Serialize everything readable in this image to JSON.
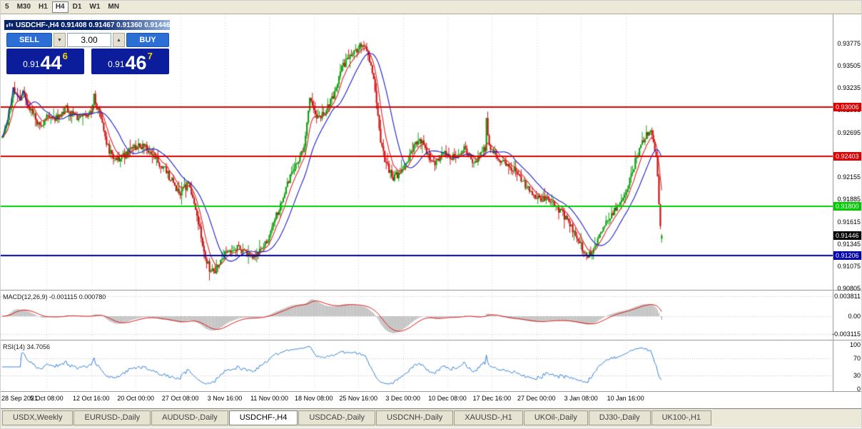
{
  "toolbar": {
    "timeframes": [
      {
        "label": "5",
        "active": false
      },
      {
        "label": "M30",
        "active": false
      },
      {
        "label": "H1",
        "active": false
      },
      {
        "label": "H4",
        "active": true
      },
      {
        "label": "D1",
        "active": false
      },
      {
        "label": "W1",
        "active": false
      },
      {
        "label": "MN",
        "active": false
      }
    ]
  },
  "chart_window": {
    "title": "USDCHF-,H4  0.91408 0.91467 0.91360 0.91446"
  },
  "trade_panel": {
    "sell_label": "SELL",
    "buy_label": "BUY",
    "volume": "3.00",
    "volume_down_glyph": "▼",
    "volume_up_glyph": "▲",
    "sell_price_prefix": "0.91",
    "sell_price_big": "44",
    "sell_price_sup": "6",
    "buy_price_prefix": "0.91",
    "buy_price_big": "46",
    "buy_price_sup": "7"
  },
  "price_axis": {
    "ticks": [
      "0.93775",
      "0.93505",
      "0.93235",
      "0.92965",
      "0.92695",
      "0.92425",
      "0.92155",
      "0.91885",
      "0.91615",
      "0.91345",
      "0.91075",
      "0.90805"
    ],
    "levels": [
      {
        "value": "0.93006",
        "price": 0.93006,
        "bg": "#dd0000"
      },
      {
        "value": "0.92403",
        "price": 0.92403,
        "bg": "#dd0000"
      },
      {
        "value": "0.91800",
        "price": 0.918,
        "bg": "#00cc00"
      },
      {
        "value": "0.91446",
        "price": 0.91446,
        "bg": "#000000"
      },
      {
        "value": "0.91206",
        "price": 0.91206,
        "bg": "#0000aa"
      }
    ]
  },
  "time_axis": {
    "labels": [
      "28 Sep 2021",
      "5 Oct 08:00",
      "12 Oct 16:00",
      "20 Oct 00:00",
      "27 Oct 08:00",
      "3 Nov 16:00",
      "11 Nov 00:00",
      "18 Nov 08:00",
      "25 Nov 16:00",
      "3 Dec 00:00",
      "10 Dec 08:00",
      "17 Dec 16:00",
      "27 Dec 00:00",
      "3 Jan 08:00",
      "10 Jan 16:00"
    ]
  },
  "indicators": {
    "macd": {
      "label": "MACD(12,26,9) -0.001115 0.000780",
      "scale_top": "0.003811",
      "scale_mid": "0.00",
      "scale_bottom": "-0.003115"
    },
    "rsi": {
      "label": "RSI(14) 34.7056",
      "scale": [
        "100",
        "70",
        "30",
        "0"
      ]
    }
  },
  "tabs": [
    {
      "label": "USDX,Weekly",
      "active": false
    },
    {
      "label": "EURUSD-,Daily",
      "active": false
    },
    {
      "label": "AUDUSD-,Daily",
      "active": false
    },
    {
      "label": "USDCHF-,H4",
      "active": true
    },
    {
      "label": "USDCAD-,Daily",
      "active": false
    },
    {
      "label": "USDCNH-,Daily",
      "active": false
    },
    {
      "label": "XAUUSD-,H1",
      "active": false
    },
    {
      "label": "UKOil-,Daily",
      "active": false
    },
    {
      "label": "DJ30-,Daily",
      "active": false
    },
    {
      "label": "UK100-,H1",
      "active": false
    }
  ],
  "colors": {
    "button_blue": "#2b6fd6",
    "price_panel_navy": "#0b1d9b",
    "pip_digit_yellow": "#ffd700",
    "up_candle": "#0da00d",
    "down_candle": "#cc1414",
    "ma_fast_red": "#e02020",
    "ma_slow_blue": "#1a1acc",
    "macd_histogram": "#b2b2b2",
    "macd_signal": "#dd1111",
    "rsi_line": "#2f7ed8"
  },
  "chart_data": {
    "type": "candlestick",
    "symbol": "USDCHF-",
    "timeframe": "H4",
    "current_bar": {
      "open": 0.91408,
      "high": 0.91467,
      "low": 0.9136,
      "close": 0.91446
    },
    "visible_price_range": [
      0.9079,
      0.94125
    ],
    "bar_count": 475,
    "horizontal_lines": [
      {
        "price": 0.93006,
        "color": "#dd0000",
        "width": 1.8
      },
      {
        "price": 0.92403,
        "color": "#dd0000",
        "width": 1.8
      },
      {
        "price": 0.918,
        "color": "#00cc00",
        "width": 2.2
      },
      {
        "price": 0.91206,
        "color": "#0000aa",
        "width": 2.2
      }
    ],
    "moving_averages": [
      {
        "type": "ema",
        "period": 8,
        "color": "#e02020"
      },
      {
        "type": "sma",
        "period": 20,
        "color": "#1a1acc"
      }
    ],
    "macd": {
      "fast": 12,
      "slow": 26,
      "signal": 9,
      "main_value": -0.001115,
      "signal_value": 0.00078
    },
    "rsi": {
      "period": 14,
      "value": 34.7056
    },
    "price_path_anchors": [
      [
        0,
        0.9263
      ],
      [
        4,
        0.9285
      ],
      [
        8,
        0.9322
      ],
      [
        12,
        0.931
      ],
      [
        15,
        0.9318
      ],
      [
        18,
        0.9305
      ],
      [
        22,
        0.9293
      ],
      [
        26,
        0.9278
      ],
      [
        30,
        0.9283
      ],
      [
        34,
        0.929
      ],
      [
        38,
        0.9286
      ],
      [
        42,
        0.9292
      ],
      [
        46,
        0.9298
      ],
      [
        50,
        0.9291
      ],
      [
        55,
        0.9288
      ],
      [
        60,
        0.9288
      ],
      [
        64,
        0.9296
      ],
      [
        66,
        0.9314
      ],
      [
        68,
        0.9301
      ],
      [
        71,
        0.9288
      ],
      [
        74,
        0.9264
      ],
      [
        77,
        0.9245
      ],
      [
        81,
        0.9241
      ],
      [
        85,
        0.9238
      ],
      [
        89,
        0.9244
      ],
      [
        93,
        0.9248
      ],
      [
        97,
        0.9252
      ],
      [
        101,
        0.9254
      ],
      [
        105,
        0.9248
      ],
      [
        109,
        0.9241
      ],
      [
        113,
        0.9232
      ],
      [
        117,
        0.9224
      ],
      [
        121,
        0.9213
      ],
      [
        125,
        0.9202
      ],
      [
        128,
        0.9196
      ],
      [
        131,
        0.9202
      ],
      [
        134,
        0.9207
      ],
      [
        137,
        0.9194
      ],
      [
        140,
        0.9172
      ],
      [
        143,
        0.9143
      ],
      [
        146,
        0.912
      ],
      [
        149,
        0.9104
      ],
      [
        152,
        0.9099
      ],
      [
        155,
        0.911
      ],
      [
        158,
        0.9118
      ],
      [
        162,
        0.9124
      ],
      [
        166,
        0.9127
      ],
      [
        170,
        0.913
      ],
      [
        174,
        0.9124
      ],
      [
        178,
        0.9119
      ],
      [
        182,
        0.9122
      ],
      [
        186,
        0.9128
      ],
      [
        190,
        0.9136
      ],
      [
        194,
        0.9152
      ],
      [
        198,
        0.9174
      ],
      [
        202,
        0.9194
      ],
      [
        206,
        0.9212
      ],
      [
        210,
        0.9226
      ],
      [
        214,
        0.9238
      ],
      [
        218,
        0.9262
      ],
      [
        221,
        0.9308
      ],
      [
        223,
        0.9302
      ],
      [
        226,
        0.929
      ],
      [
        229,
        0.9289
      ],
      [
        232,
        0.9295
      ],
      [
        235,
        0.9302
      ],
      [
        238,
        0.9315
      ],
      [
        241,
        0.933
      ],
      [
        244,
        0.9348
      ],
      [
        248,
        0.9357
      ],
      [
        252,
        0.9364
      ],
      [
        256,
        0.9371
      ],
      [
        259,
        0.9377
      ],
      [
        262,
        0.9371
      ],
      [
        265,
        0.9347
      ],
      [
        268,
        0.9322
      ],
      [
        270,
        0.9288
      ],
      [
        272,
        0.9254
      ],
      [
        275,
        0.9238
      ],
      [
        278,
        0.9224
      ],
      [
        281,
        0.9215
      ],
      [
        284,
        0.9218
      ],
      [
        287,
        0.9222
      ],
      [
        290,
        0.9228
      ],
      [
        293,
        0.9241
      ],
      [
        296,
        0.9254
      ],
      [
        299,
        0.9259
      ],
      [
        302,
        0.9256
      ],
      [
        305,
        0.9245
      ],
      [
        308,
        0.9233
      ],
      [
        311,
        0.9232
      ],
      [
        314,
        0.9239
      ],
      [
        317,
        0.9246
      ],
      [
        320,
        0.9242
      ],
      [
        323,
        0.9238
      ],
      [
        326,
        0.9241
      ],
      [
        329,
        0.9245
      ],
      [
        332,
        0.925
      ],
      [
        335,
        0.9244
      ],
      [
        338,
        0.9235
      ],
      [
        341,
        0.9238
      ],
      [
        344,
        0.9246
      ],
      [
        347,
        0.9251
      ],
      [
        348,
        0.9283
      ],
      [
        350,
        0.9255
      ],
      [
        352,
        0.9247
      ],
      [
        355,
        0.9242
      ],
      [
        358,
        0.9237
      ],
      [
        361,
        0.9233
      ],
      [
        364,
        0.9229
      ],
      [
        367,
        0.9225
      ],
      [
        370,
        0.9219
      ],
      [
        373,
        0.9212
      ],
      [
        376,
        0.9206
      ],
      [
        379,
        0.92
      ],
      [
        382,
        0.9195
      ],
      [
        385,
        0.9192
      ],
      [
        388,
        0.919
      ],
      [
        391,
        0.9189
      ],
      [
        394,
        0.9186
      ],
      [
        397,
        0.9181
      ],
      [
        400,
        0.9175
      ],
      [
        403,
        0.917
      ],
      [
        406,
        0.9165
      ],
      [
        409,
        0.9156
      ],
      [
        412,
        0.9146
      ],
      [
        415,
        0.9136
      ],
      [
        418,
        0.9124
      ],
      [
        420,
        0.9116
      ],
      [
        422,
        0.9121
      ],
      [
        425,
        0.913
      ],
      [
        428,
        0.914
      ],
      [
        431,
        0.915
      ],
      [
        434,
        0.9159
      ],
      [
        437,
        0.9167
      ],
      [
        440,
        0.9174
      ],
      [
        443,
        0.9182
      ],
      [
        446,
        0.9192
      ],
      [
        449,
        0.9204
      ],
      [
        452,
        0.922
      ],
      [
        455,
        0.9234
      ],
      [
        458,
        0.9248
      ],
      [
        461,
        0.9261
      ],
      [
        464,
        0.927
      ],
      [
        466,
        0.9273
      ],
      [
        468,
        0.926
      ],
      [
        470,
        0.9242
      ],
      [
        471,
        0.9216
      ],
      [
        472,
        0.918
      ],
      [
        473,
        0.9158
      ],
      [
        474,
        0.91446
      ]
    ]
  }
}
